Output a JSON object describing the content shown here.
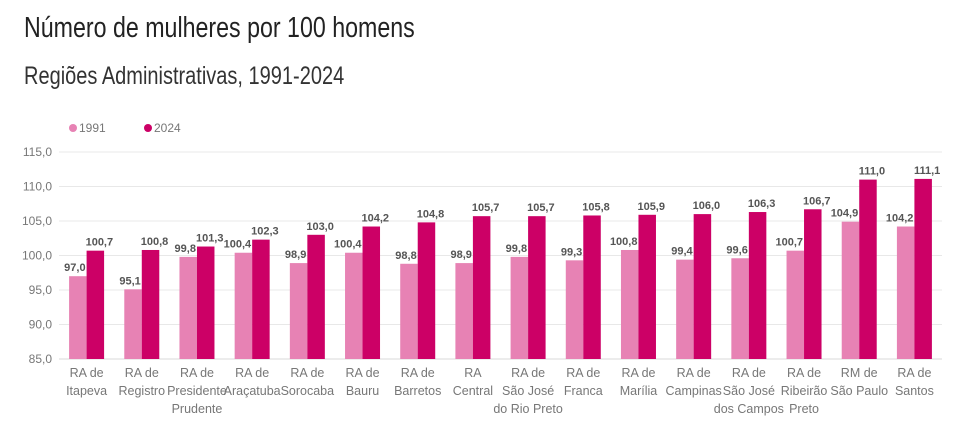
{
  "title": "Número de mulheres por 100 homens",
  "subtitle": "Regiões Administrativas, 1991-2024",
  "chart_data": {
    "type": "bar",
    "title": "Número de mulheres por 100 homens",
    "subtitle": "Regiões Administrativas, 1991-2024",
    "xlabel": "",
    "ylabel": "",
    "ylim": [
      85,
      115
    ],
    "yticks": [
      "85,0",
      "90,0",
      "95,0",
      "100,0",
      "105,0",
      "110,0",
      "115,0"
    ],
    "grid": true,
    "legend_position": "top-left",
    "categories": [
      [
        "RA de",
        "Itapeva"
      ],
      [
        "RA de",
        "Registro"
      ],
      [
        "RA de",
        "Presidente",
        "Prudente"
      ],
      [
        "RA de",
        "Araçatuba"
      ],
      [
        "RA de",
        "Sorocaba"
      ],
      [
        "RA de",
        "Bauru"
      ],
      [
        "RA de",
        "Barretos"
      ],
      [
        "RA",
        "Central"
      ],
      [
        "RA de",
        "São José",
        "do Rio Preto"
      ],
      [
        "RA de",
        "Franca"
      ],
      [
        "RA de",
        "Marília"
      ],
      [
        "RA de",
        "Campinas"
      ],
      [
        "RA de",
        "São José",
        "dos Campos"
      ],
      [
        "RA de",
        "Ribeirão",
        "Preto"
      ],
      [
        "RM de",
        "São Paulo"
      ],
      [
        "RA de",
        "Santos"
      ]
    ],
    "series": [
      {
        "name": "1991",
        "color": "#e782b4",
        "values": [
          97.0,
          95.1,
          99.8,
          100.4,
          98.9,
          100.4,
          98.8,
          98.9,
          99.8,
          99.3,
          100.8,
          99.4,
          99.6,
          100.7,
          104.9,
          104.2
        ],
        "labels": [
          "97,0",
          "95,1",
          "99,8",
          "100,4",
          "98,9",
          "100,4",
          "98,8",
          "98,9",
          "99,8",
          "99,3",
          "100,8",
          "99,4",
          "99,6",
          "100,7",
          "104,9",
          "104,2"
        ]
      },
      {
        "name": "2024",
        "color": "#cc0066",
        "values": [
          100.7,
          100.8,
          101.3,
          102.3,
          103.0,
          104.2,
          104.8,
          105.7,
          105.7,
          105.8,
          105.9,
          106.0,
          106.3,
          106.7,
          111.0,
          111.1
        ],
        "labels": [
          "100,7",
          "100,8",
          "101,3",
          "102,3",
          "103,0",
          "104,2",
          "104,8",
          "105,7",
          "105,7",
          "105,8",
          "105,9",
          "106,0",
          "106,3",
          "106,7",
          "111,0",
          "111,1"
        ]
      }
    ]
  }
}
